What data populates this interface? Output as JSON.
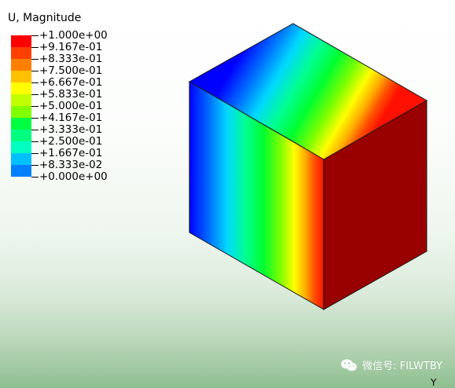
{
  "legend": {
    "title": "U, Magnitude",
    "labels": [
      "+1.000e+00",
      "+9.167e-01",
      "+8.333e-01",
      "+7.500e-01",
      "+6.667e-01",
      "+5.833e-01",
      "+5.000e-01",
      "+4.167e-01",
      "+3.333e-01",
      "+2.500e-01",
      "+1.667e-01",
      "+8.333e-02",
      "+0.000e+00"
    ],
    "colors": [
      "#ff0000",
      "#ff4000",
      "#ff8000",
      "#ffc000",
      "#ffff00",
      "#c0ff00",
      "#80ff00",
      "#00ff40",
      "#00ff80",
      "#00ffc0",
      "#00c0ff",
      "#0080ff",
      "#0000ff"
    ]
  },
  "model": {
    "front_face_color": "#990000",
    "edge_color": "#222222",
    "gradient_stops": [
      "#0000ff",
      "#0040ff",
      "#0080ff",
      "#00c0ff",
      "#00ffc0",
      "#00ff80",
      "#00ff40",
      "#40ff00",
      "#80ff00",
      "#c0ff00",
      "#ffff00",
      "#ffc000",
      "#ff8000",
      "#ff4000",
      "#ff0000",
      "#990000"
    ]
  },
  "watermark": {
    "text": "微信号: FILWTBY",
    "icon": "wechat-icon"
  },
  "triad": {
    "axis_label": "Y"
  }
}
